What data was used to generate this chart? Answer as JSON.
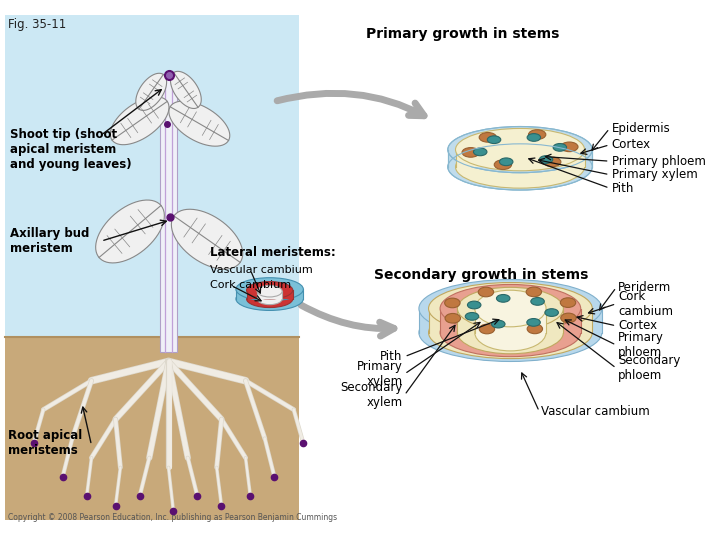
{
  "fig_label": "Fig. 35-11",
  "title_primary": "Primary growth in stems",
  "title_secondary": "Secondary growth in stems",
  "copyright": "Copyright © 2008 Pearson Education, Inc. publishing as Pearson Benjamin Cummings",
  "colors": {
    "background": "#ffffff",
    "sky": "#cce8f4",
    "soil": "#c8a97a",
    "stem_fill": "#f0f0f8",
    "stem_edge": "#a0a0c0",
    "root_color": "#e8e0d0",
    "leaf_fill": "#e8e8e8",
    "leaf_edge": "#999999",
    "purple": "#6a1a80",
    "primary_blue": "#b8d8e8",
    "primary_blue_side": "#90b8d0",
    "primary_cream": "#f5f0d0",
    "primary_phloem_brown": "#c07840",
    "primary_xylem_teal": "#3a9090",
    "secondary_blue": "#a8cce0",
    "secondary_blue_dark": "#80aac0",
    "secondary_cream": "#f0e8c0",
    "secondary_pink_ring": "#e08878",
    "secondary_orange_spots": "#c87840",
    "secondary_teal_spots": "#3a9090",
    "secondary_inner_cream": "#f8f0d8",
    "cyl_blue": "#6aaccC",
    "cyl_red": "#cc3333",
    "cyl_white": "#f8f8f8",
    "cyl_darkblue": "#4488aa",
    "arrow_gray": "#a0a0a0",
    "label_line": "#111111",
    "text": "#000000"
  }
}
